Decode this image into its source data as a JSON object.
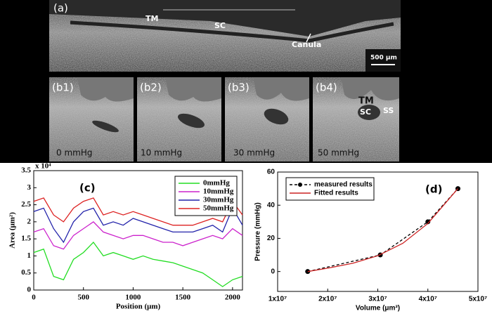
{
  "images": {
    "a": {
      "label": "(a)",
      "annotations": [
        "TM",
        "SC",
        "Canula"
      ],
      "scale_bar": "500 µm"
    },
    "b": [
      {
        "label": "(b1)",
        "pressure": "0 mmHg"
      },
      {
        "label": "(b2)",
        "pressure": "10 mmHg"
      },
      {
        "label": "(b3)",
        "pressure": "30 mmHg"
      },
      {
        "label": "(b4)",
        "pressure": "50 mmHg",
        "annotations": [
          "TM",
          "SC",
          "SS"
        ]
      }
    ]
  },
  "chart_data": [
    {
      "type": "line",
      "panel_label": "(c)",
      "xlabel": "Position (μm)",
      "ylabel": "Area (μm²)",
      "y_multiplier": "x 10⁴",
      "x": [
        0,
        100,
        200,
        300,
        400,
        500,
        600,
        700,
        800,
        900,
        1000,
        1100,
        1200,
        1300,
        1400,
        1500,
        1600,
        1700,
        1800,
        1900,
        2000,
        2100
      ],
      "series": [
        {
          "name": "0mmHg",
          "color": "#22dd22",
          "values": [
            1.1,
            1.2,
            0.4,
            0.3,
            0.9,
            1.1,
            1.4,
            1.0,
            1.1,
            1.0,
            0.9,
            1.0,
            0.9,
            0.85,
            0.8,
            0.7,
            0.6,
            0.5,
            0.3,
            0.1,
            0.3,
            0.4
          ]
        },
        {
          "name": "10mmHg",
          "color": "#cc22cc",
          "values": [
            1.7,
            1.8,
            1.3,
            1.2,
            1.6,
            1.8,
            2.0,
            1.7,
            1.6,
            1.5,
            1.6,
            1.6,
            1.5,
            1.4,
            1.4,
            1.3,
            1.4,
            1.5,
            1.6,
            1.5,
            1.8,
            1.6
          ]
        },
        {
          "name": "30mmHg",
          "color": "#2222aa",
          "values": [
            2.3,
            2.4,
            1.8,
            1.4,
            2.0,
            2.3,
            2.4,
            1.9,
            2.0,
            1.9,
            2.1,
            2.0,
            1.9,
            1.8,
            1.7,
            1.7,
            1.7,
            1.8,
            1.9,
            1.7,
            2.4,
            1.9
          ]
        },
        {
          "name": "50mmHg",
          "color": "#dd2222",
          "values": [
            2.6,
            2.7,
            2.2,
            2.0,
            2.4,
            2.6,
            2.7,
            2.2,
            2.3,
            2.2,
            2.3,
            2.2,
            2.1,
            2.0,
            1.9,
            1.9,
            1.9,
            2.0,
            2.1,
            2.0,
            2.6,
            2.2
          ]
        }
      ],
      "xlim": [
        0,
        2100
      ],
      "xticks": [
        0,
        500,
        1000,
        1500,
        2000
      ],
      "ylim": [
        0,
        3.5
      ],
      "yticks": [
        0,
        0.5,
        1,
        1.5,
        2,
        2.5,
        3,
        3.5
      ],
      "legend": "upper right"
    },
    {
      "type": "line",
      "panel_label": "(d)",
      "xlabel": "Volume (μm³)",
      "ylabel": "Pressure (mmHg)",
      "series": [
        {
          "name": "measured results",
          "color": "#000000",
          "dash": true,
          "marker": "circle",
          "x": [
            16000000,
            30500000,
            40000000,
            46000000
          ],
          "values": [
            0,
            10,
            30,
            50
          ]
        },
        {
          "name": "Fitted results",
          "color": "#cc2222",
          "x": [
            16000000,
            20000000,
            25000000,
            30000000,
            35000000,
            40000000,
            46000000
          ],
          "values": [
            0,
            2,
            5,
            9.5,
            17,
            29,
            50
          ]
        }
      ],
      "xlim": [
        10000000,
        50000000
      ],
      "xticks": [
        {
          "value": 10000000,
          "label": "1x10⁷"
        },
        {
          "value": 20000000,
          "label": "2x10⁷"
        },
        {
          "value": 30000000,
          "label": "3x10⁷"
        },
        {
          "value": 40000000,
          "label": "4x10⁷"
        },
        {
          "value": 50000000,
          "label": "5x10⁷"
        }
      ],
      "ylim": [
        -12,
        60
      ],
      "yticks": [
        0,
        20,
        40,
        60
      ],
      "legend": "upper left"
    }
  ]
}
